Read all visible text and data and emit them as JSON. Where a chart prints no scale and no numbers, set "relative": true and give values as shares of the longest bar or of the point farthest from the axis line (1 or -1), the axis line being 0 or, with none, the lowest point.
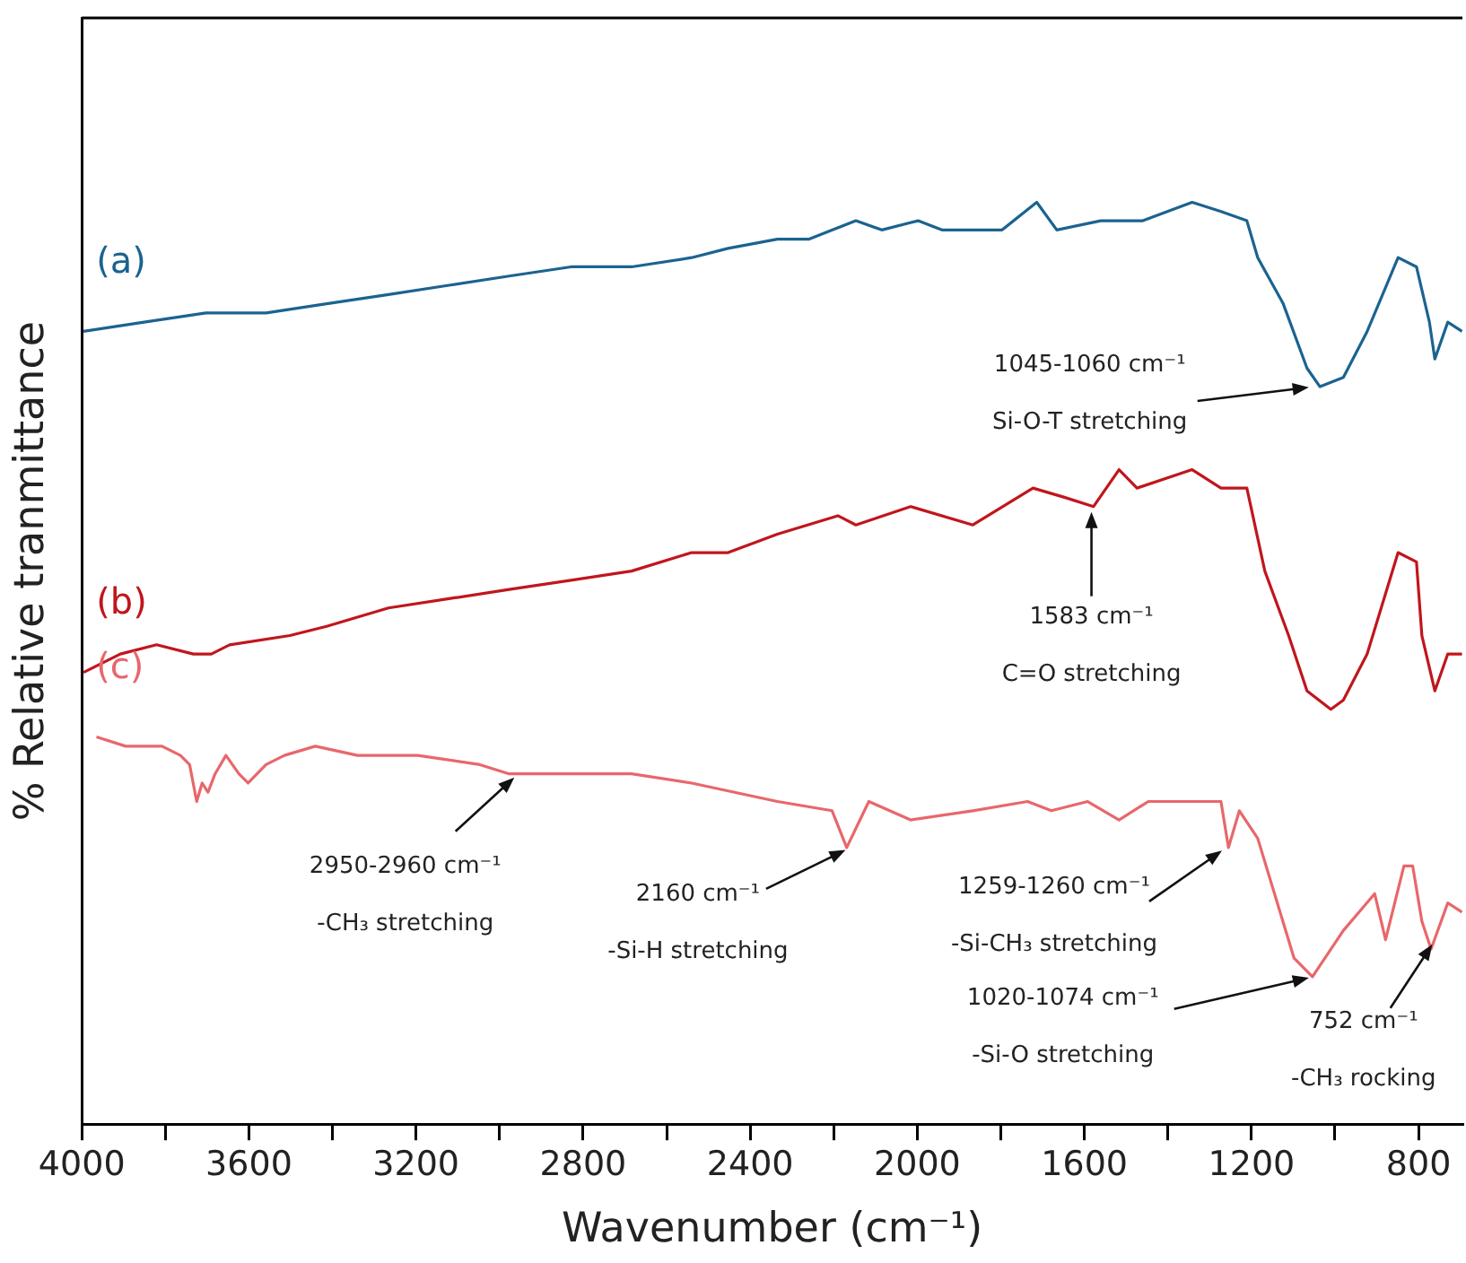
{
  "chart_data": {
    "type": "line",
    "relative": true,
    "xlabel": "Wavenumber (cm⁻¹)",
    "ylabel": "% Relative tranmittance",
    "xlim": [
      4000,
      695
    ],
    "xticks": [
      4000,
      {
        "value": 3800,
        "label": null
      },
      3600,
      {
        "value": 3400,
        "label": null
      },
      3200,
      {
        "value": 3000,
        "label": null
      },
      2800,
      {
        "value": 2600,
        "label": null
      },
      2400,
      {
        "value": 2200,
        "label": null
      },
      2000,
      {
        "value": 1800,
        "label": null
      },
      1600,
      {
        "value": 1400,
        "label": null
      },
      1200,
      {
        "value": 1000,
        "label": null
      },
      800
    ],
    "legend": false,
    "grid": false,
    "marker": "none",
    "line_style": "solid",
    "series": [
      {
        "name": "(a)",
        "color": "#1b6390",
        "x": [
          3996,
          3851,
          3703,
          3559,
          3414,
          3266,
          3121,
          2977,
          2829,
          2684,
          2540,
          2453,
          2335,
          2260,
          2203,
          2147,
          2085,
          1998,
          1941,
          1797,
          1714,
          1666,
          1561,
          1460,
          1342,
          1273,
          1211,
          1185,
          1124,
          1067,
          1036,
          980,
          923,
          849,
          805,
          774,
          761,
          730,
          696
        ],
        "values": [
          0.86,
          0.87,
          0.88,
          0.88,
          0.89,
          0.9,
          0.91,
          0.92,
          0.93,
          0.93,
          0.94,
          0.95,
          0.96,
          0.96,
          0.97,
          0.98,
          0.97,
          0.98,
          0.97,
          0.97,
          1.0,
          0.97,
          0.98,
          0.98,
          1.0,
          0.99,
          0.98,
          0.94,
          0.89,
          0.82,
          0.8,
          0.81,
          0.86,
          0.94,
          0.93,
          0.87,
          0.83,
          0.87,
          0.86
        ]
      },
      {
        "name": "(b)",
        "color": "#c0161c",
        "x": [
          3996,
          3908,
          3821,
          3733,
          3690,
          3646,
          3502,
          3414,
          3266,
          3121,
          2977,
          2829,
          2684,
          2540,
          2453,
          2335,
          2190,
          2147,
          2016,
          1867,
          1723,
          1648,
          1578,
          1517,
          1474,
          1342,
          1273,
          1211,
          1168,
          1111,
          1067,
          1010,
          980,
          923,
          849,
          805,
          792,
          761,
          730,
          696
        ],
        "values": [
          0.49,
          0.51,
          0.52,
          0.51,
          0.51,
          0.52,
          0.53,
          0.54,
          0.56,
          0.57,
          0.58,
          0.59,
          0.6,
          0.62,
          0.62,
          0.64,
          0.66,
          0.65,
          0.67,
          0.65,
          0.69,
          0.68,
          0.67,
          0.71,
          0.69,
          0.71,
          0.69,
          0.69,
          0.6,
          0.53,
          0.47,
          0.45,
          0.46,
          0.51,
          0.62,
          0.61,
          0.53,
          0.47,
          0.51,
          0.51
        ]
      },
      {
        "name": "(c)",
        "color": "#e8676b",
        "x": [
          3965,
          3895,
          3851,
          3808,
          3764,
          3742,
          3725,
          3712,
          3698,
          3681,
          3655,
          3624,
          3602,
          3559,
          3515,
          3441,
          3340,
          3196,
          3047,
          2977,
          2829,
          2684,
          2540,
          2335,
          2204,
          2169,
          2116,
          2016,
          1867,
          1736,
          1679,
          1592,
          1517,
          1447,
          1360,
          1273,
          1255,
          1229,
          1185,
          1098,
          1054,
          980,
          905,
          879,
          835,
          814,
          792,
          770,
          730,
          696
        ],
        "values": [
          0.42,
          0.41,
          0.41,
          0.41,
          0.4,
          0.39,
          0.35,
          0.37,
          0.36,
          0.38,
          0.4,
          0.38,
          0.37,
          0.39,
          0.4,
          0.41,
          0.4,
          0.4,
          0.39,
          0.38,
          0.38,
          0.38,
          0.37,
          0.35,
          0.34,
          0.3,
          0.35,
          0.33,
          0.34,
          0.35,
          0.34,
          0.35,
          0.33,
          0.35,
          0.35,
          0.35,
          0.3,
          0.34,
          0.31,
          0.18,
          0.16,
          0.21,
          0.25,
          0.2,
          0.28,
          0.28,
          0.22,
          0.19,
          0.24,
          0.23
        ]
      }
    ],
    "annotations": [
      {
        "text": "1045-1060 cm⁻¹",
        "x": 1050,
        "y": 0.8
      },
      "Si-O-T stretching",
      {
        "text": "1583 cm⁻¹",
        "x": 1583,
        "y": 0.67
      },
      "C=O stretching",
      {
        "text": "2950-2960 cm⁻¹",
        "x": 2955,
        "y": 0.38
      },
      "-CH₃ stretching",
      {
        "text": "2160 cm⁻¹",
        "x": 2160,
        "y": 0.3
      },
      "-Si-H stretching",
      {
        "text": "1259-1260 cm⁻¹",
        "x": 1260,
        "y": 0.3
      },
      "-Si-CH₃ stretching",
      {
        "text": "1020-1074 cm⁻¹",
        "x": 1050,
        "y": 0.16
      },
      "-Si-O stretching",
      {
        "text": "752 cm⁻¹",
        "x": 760,
        "y": 0.2
      },
      "-CH₃ rocking"
    ]
  }
}
